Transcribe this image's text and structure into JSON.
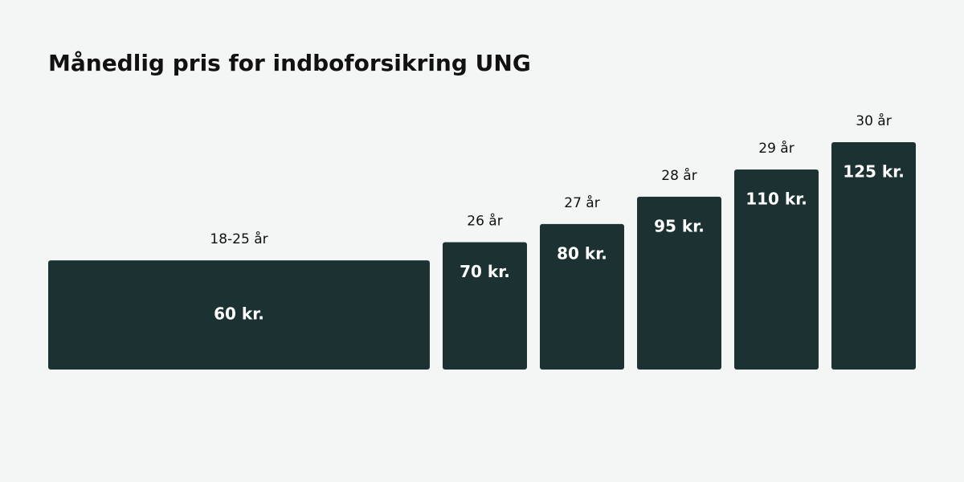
{
  "chart_data": {
    "type": "bar",
    "title": "Månedlig pris for indboforsikring UNG",
    "categories": [
      "18-25 år",
      "26 år",
      "27 år",
      "28 år",
      "29 år",
      "30 år"
    ],
    "values": [
      60,
      70,
      80,
      95,
      110,
      125
    ],
    "value_labels": [
      "60 kr.",
      "70 kr.",
      "80 kr.",
      "95 kr.",
      "110 kr.",
      "125 kr."
    ],
    "color": "#1c3232"
  }
}
